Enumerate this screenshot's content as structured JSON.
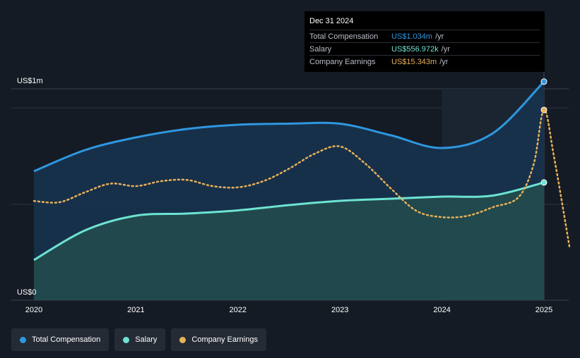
{
  "colors": {
    "total": "#2f97e0",
    "salary": "#6de3d3",
    "earnings": "#e8b15a",
    "background": "#151b24",
    "gridline": "#2c333d"
  },
  "tooltip": {
    "date": "Dec 31 2024",
    "rows": [
      {
        "label": "Total Compensation",
        "value": "US$1.034m",
        "unit": "/yr"
      },
      {
        "label": "Salary",
        "value": "US$556.972k",
        "unit": "/yr"
      },
      {
        "label": "Company Earnings",
        "value": "US$15.343m",
        "unit": "/yr"
      }
    ]
  },
  "legend": [
    {
      "label": "Total Compensation",
      "icon": "dot-icon"
    },
    {
      "label": "Salary",
      "icon": "dot-icon"
    },
    {
      "label": "Company Earnings",
      "icon": "dot-icon"
    }
  ],
  "chart_data": {
    "type": "area",
    "y_axis_labels": [
      "US$1m",
      "US$0"
    ],
    "x_ticks": [
      "2020",
      "2021",
      "2022",
      "2023",
      "2024",
      "2025"
    ],
    "x_range": [
      2020.0,
      2025.25
    ],
    "ylim": [
      0,
      1.0
    ],
    "ylabel_unit": "US$m",
    "series": [
      {
        "name": "Total Compensation",
        "x": [
          2020.0,
          2020.5,
          2021.0,
          2021.5,
          2022.0,
          2022.5,
          2023.0,
          2023.5,
          2024.0,
          2024.5,
          2025.0
        ],
        "values": [
          0.61,
          0.71,
          0.77,
          0.81,
          0.83,
          0.835,
          0.835,
          0.78,
          0.72,
          0.79,
          1.034
        ]
      },
      {
        "name": "Salary",
        "x": [
          2020.0,
          2020.5,
          2021.0,
          2021.5,
          2022.0,
          2022.5,
          2023.0,
          2023.5,
          2024.0,
          2024.5,
          2025.0
        ],
        "values": [
          0.19,
          0.33,
          0.4,
          0.41,
          0.425,
          0.45,
          0.47,
          0.48,
          0.49,
          0.495,
          0.557
        ]
      },
      {
        "name": "Company Earnings",
        "x": [
          2020.0,
          2020.25,
          2020.5,
          2020.75,
          2021.0,
          2021.25,
          2021.5,
          2021.75,
          2022.0,
          2022.25,
          2022.5,
          2022.75,
          2023.0,
          2023.25,
          2023.5,
          2023.75,
          2024.0,
          2024.25,
          2024.5,
          2024.75,
          2024.9,
          2025.0,
          2025.1,
          2025.25
        ],
        "values": [
          8.0,
          7.9,
          8.7,
          9.4,
          9.2,
          9.6,
          9.7,
          9.2,
          9.1,
          9.6,
          10.6,
          11.8,
          12.4,
          11.0,
          9.0,
          7.2,
          6.7,
          6.8,
          7.5,
          8.3,
          11.0,
          15.343,
          11.5,
          4.3
        ]
      }
    ]
  }
}
